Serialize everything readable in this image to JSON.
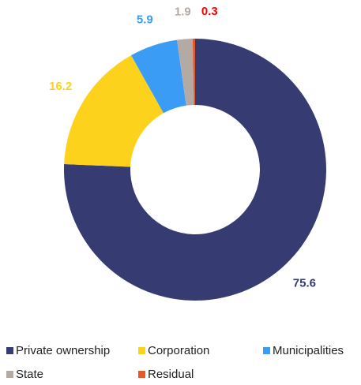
{
  "chart_data": {
    "type": "donut",
    "categories": [
      "Private ownership",
      "Corporation",
      "Municipalities",
      "State",
      "Residual"
    ],
    "values": [
      75.6,
      16.2,
      5.9,
      1.9,
      0.3
    ],
    "colors": [
      "#363c72",
      "#fcd21c",
      "#3a9cf5",
      "#b4aaa4",
      "#e4582a"
    ],
    "label_colors": [
      "#363c72",
      "#fcd21c",
      "#3a9cf5",
      "#b4aaa4",
      "#ff0000"
    ],
    "legend": "bottom"
  }
}
